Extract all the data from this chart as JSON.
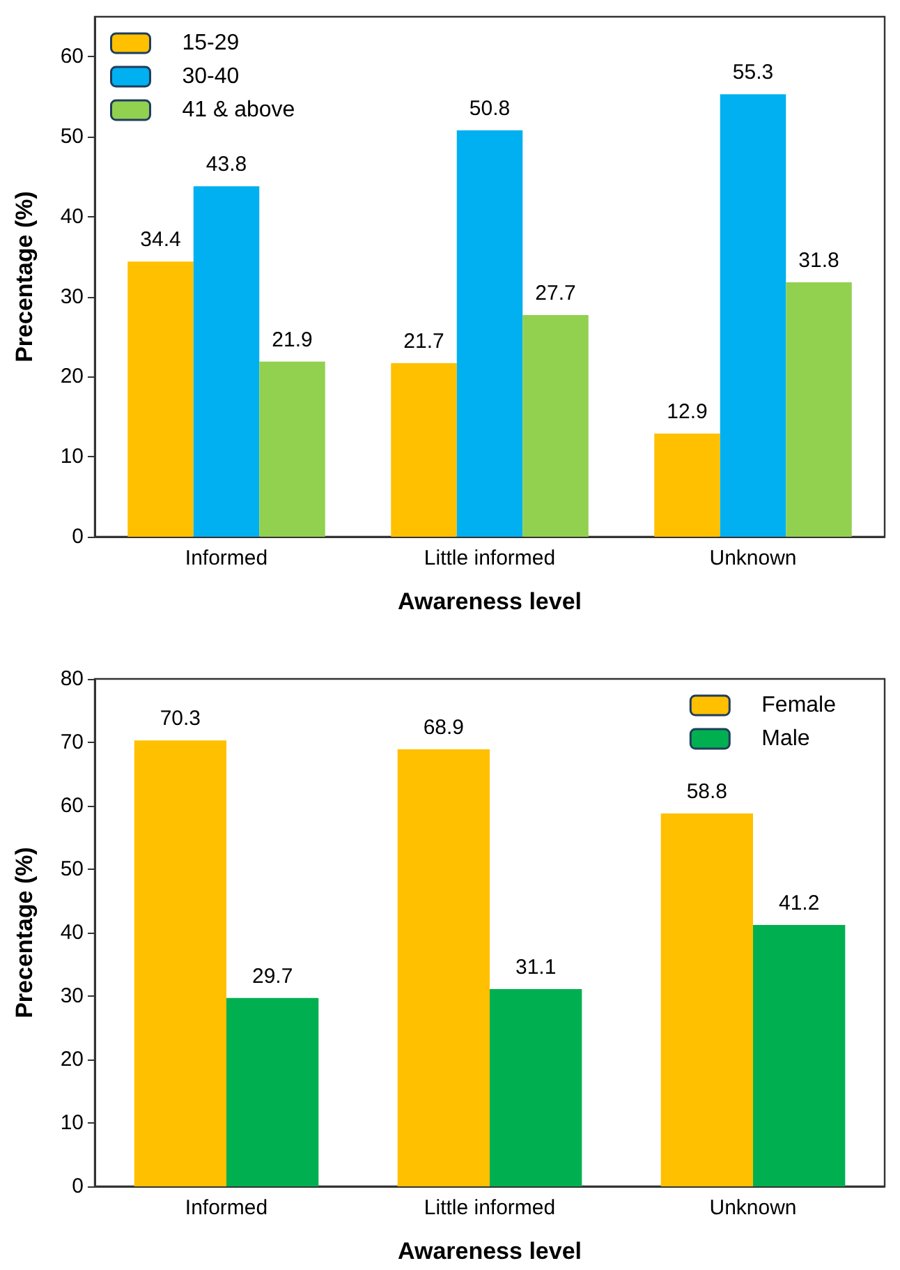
{
  "chart_data": [
    {
      "type": "bar",
      "xlabel": "Awareness level",
      "ylabel": "Precentage (%)",
      "categories": [
        "Informed",
        "Little informed",
        "Unknown"
      ],
      "series": [
        {
          "name": "15-29",
          "color": "#ffc000",
          "values": [
            34.4,
            21.7,
            12.9
          ]
        },
        {
          "name": "30-40",
          "color": "#00b0f0",
          "values": [
            43.8,
            50.8,
            55.3
          ]
        },
        {
          "name": "41 & above",
          "color": "#92d050",
          "values": [
            21.9,
            27.7,
            31.8
          ]
        }
      ],
      "ylim": [
        0,
        65
      ],
      "yticks": [
        0,
        10,
        20,
        30,
        40,
        50,
        60
      ],
      "grid": false,
      "legend": "top left",
      "data_labels": true
    },
    {
      "type": "bar",
      "xlabel": "Awareness level",
      "ylabel": "Precentage (%)",
      "categories": [
        "Informed",
        "Little informed",
        "Unknown"
      ],
      "series": [
        {
          "name": "Female",
          "color": "#ffc000",
          "values": [
            70.3,
            68.9,
            58.8
          ]
        },
        {
          "name": "Male",
          "color": "#00b050",
          "values": [
            29.7,
            31.1,
            41.2
          ]
        }
      ],
      "ylim": [
        0,
        80
      ],
      "yticks": [
        0,
        10,
        20,
        30,
        40,
        50,
        60,
        70,
        80
      ],
      "grid": false,
      "legend": "top right",
      "data_labels": true
    }
  ]
}
